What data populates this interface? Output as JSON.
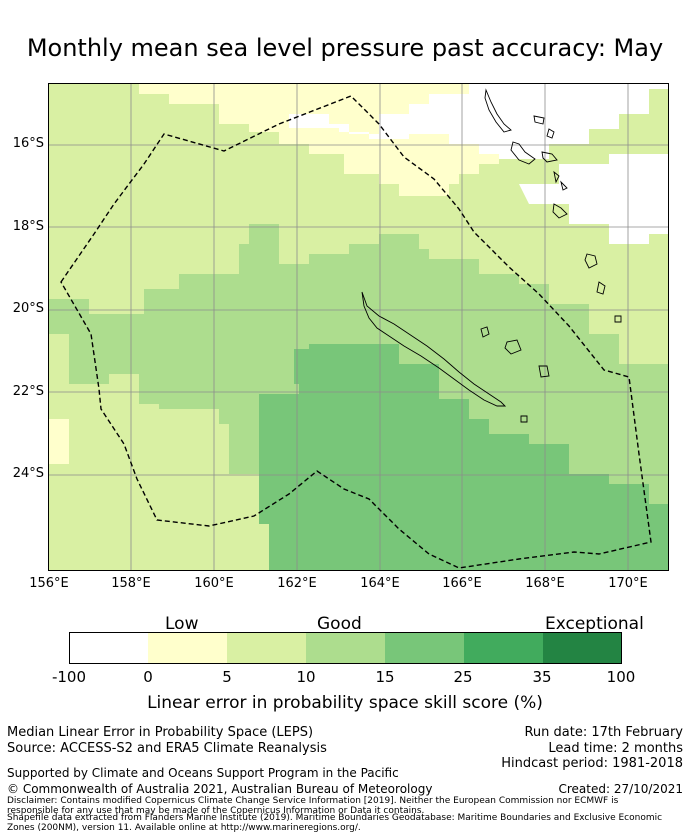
{
  "title": "Monthly mean sea level pressure past accuracy: May",
  "map": {
    "lat_labels": [
      "16°S",
      "18°S",
      "20°S",
      "22°S",
      "24°S"
    ],
    "lon_labels": [
      "156°E",
      "158°E",
      "160°E",
      "162°E",
      "164°E",
      "166°E",
      "168°E",
      "170°E"
    ],
    "colors": {
      "white": "#ffffff",
      "low": "#ffffcc",
      "good1": "#d9f0a3",
      "good2": "#addd8e",
      "good3": "#78c679",
      "exc1": "#41ab5d",
      "exc2": "#238443",
      "grid": "#8c8c8c"
    }
  },
  "colorbar": {
    "categories": [
      "Low",
      "Good",
      "Exceptional"
    ],
    "ticks": [
      "-100",
      "0",
      "5",
      "10",
      "15",
      "25",
      "35",
      "100"
    ],
    "title": "Linear error in probability space skill score (%)"
  },
  "footer": {
    "left_line1": "Median Linear Error in Probability Space (LEPS)",
    "left_line2": "Source: ACCESS-S2 and ERA5 Climate Reanalysis",
    "support": "Supported by Climate and Oceans Support Program in the Pacific",
    "copyright": "© Commonwealth of Australia 2021, Australian Bureau of Meteorology",
    "run_date": "Run date: 17th February",
    "lead_time": "Lead time: 2 months",
    "hindcast": "Hindcast period: 1981-2018",
    "created": "Created: 27/10/2021",
    "disclaimer1": "Disclaimer: Contains modified Copernicus Climate Change Service Information [2019]. Neither the European Commission nor ECMWF is",
    "disclaimer2": "responsible for any use that may be made of the Copernicus Information or Data it contains.",
    "disclaimer3": "Shapefile data extracted from Flanders Marine Institute (2019). Maritime Boundaries Geodatabase: Maritime Boundaries and Exclusive Economic",
    "disclaimer4": "Zones (200NM), version 11. Available online at http://www.marineregions.org/."
  }
}
